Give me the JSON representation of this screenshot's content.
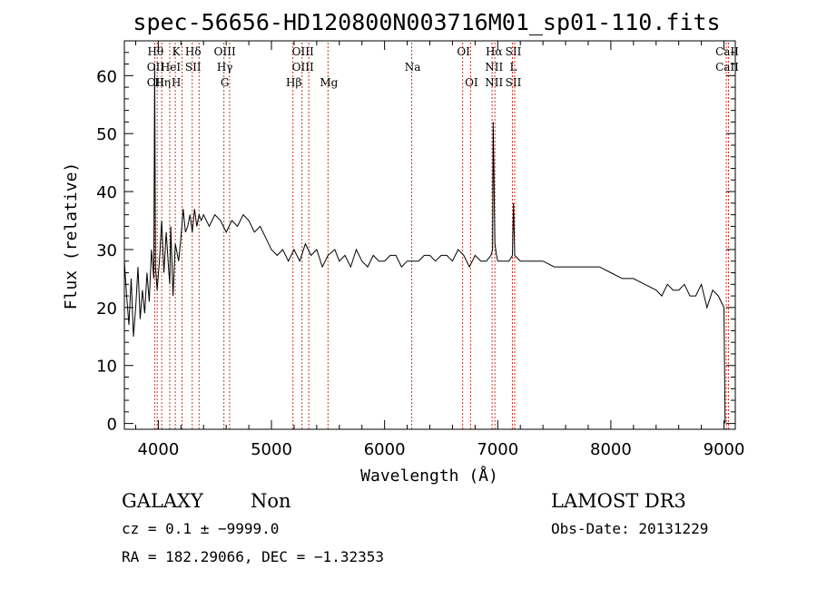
{
  "chart_data": {
    "type": "line",
    "title": "spec-56656-HD120800N003716M01_sp01-110.fits",
    "xlabel": "Wavelength (Å)",
    "ylabel": "Flux (relative)",
    "xlim": [
      3700,
      9100
    ],
    "ylim": [
      -1,
      66
    ],
    "x_ticks": [
      4000,
      5000,
      6000,
      7000,
      8000,
      9000
    ],
    "y_ticks": [
      0,
      10,
      20,
      30,
      40,
      50,
      60
    ],
    "grid": false,
    "series": [
      {
        "color": "#000000",
        "x": [
          3700,
          3720,
          3740,
          3760,
          3780,
          3800,
          3820,
          3840,
          3860,
          3880,
          3900,
          3920,
          3940,
          3960,
          3968,
          3975,
          3990,
          4010,
          4030,
          4050,
          4070,
          4090,
          4101,
          4110,
          4130,
          4150,
          4180,
          4200,
          4220,
          4240,
          4260,
          4280,
          4300,
          4320,
          4340,
          4360,
          4380,
          4400,
          4450,
          4500,
          4550,
          4600,
          4650,
          4700,
          4750,
          4800,
          4850,
          4900,
          4950,
          5000,
          5050,
          5100,
          5150,
          5200,
          5250,
          5300,
          5350,
          5400,
          5450,
          5500,
          5560,
          5600,
          5650,
          5700,
          5750,
          5800,
          5850,
          5900,
          5950,
          6000,
          6050,
          6100,
          6150,
          6200,
          6250,
          6300,
          6350,
          6400,
          6450,
          6500,
          6550,
          6600,
          6650,
          6700,
          6750,
          6800,
          6850,
          6900,
          6940,
          6955,
          6960,
          6975,
          6990,
          7000,
          7050,
          7100,
          7130,
          7140,
          7150,
          7200,
          7300,
          7400,
          7500,
          7600,
          7700,
          7800,
          7900,
          8000,
          8100,
          8200,
          8300,
          8400,
          8450,
          8500,
          8550,
          8600,
          8650,
          8700,
          8750,
          8800,
          8850,
          8900,
          8950,
          9000,
          9010
        ],
        "values": [
          28,
          22,
          17,
          25,
          15,
          20,
          27,
          18,
          23,
          19,
          26,
          21,
          30,
          25,
          62,
          27,
          23,
          28,
          35,
          26,
          33,
          27,
          24,
          34,
          22,
          31,
          28,
          32,
          37,
          33,
          34,
          36,
          33,
          37,
          34,
          36,
          35,
          36,
          34,
          36,
          35,
          33,
          35,
          34,
          36,
          35,
          33,
          34,
          32,
          30,
          29,
          30,
          28,
          30,
          28,
          31,
          29,
          30,
          27,
          29,
          30,
          28,
          29,
          27,
          30,
          28,
          27,
          29,
          28,
          28,
          29,
          29,
          27,
          28,
          28,
          28,
          29,
          29,
          28,
          29,
          29,
          28,
          30,
          29,
          27,
          29,
          28,
          28,
          29,
          30,
          52,
          31,
          29,
          28,
          28,
          28,
          29,
          38,
          29,
          28,
          28,
          28,
          27,
          27,
          27,
          27,
          27,
          26,
          25,
          25,
          24,
          23,
          22,
          24,
          23,
          23,
          24,
          22,
          22,
          24,
          20,
          23,
          22,
          20,
          0
        ]
      }
    ],
    "lines": [
      {
        "x": 3968,
        "top": "Hθ",
        "mid": "OII",
        "bot": "OII"
      },
      {
        "x": 4030,
        "top": "",
        "mid": "",
        "bot": "Hη"
      },
      {
        "x": 4101,
        "top": "",
        "mid": "HeI",
        "bot": ""
      },
      {
        "x": 4150,
        "top": "K",
        "mid": "",
        "bot": "H"
      },
      {
        "x": 4300,
        "top": "Hδ",
        "mid": "SII",
        "bot": ""
      },
      {
        "x": 4580,
        "top": "OIII",
        "mid": "Hγ",
        "bot": "G"
      },
      {
        "x": 5190,
        "top": "",
        "mid": "",
        "bot": "Hβ"
      },
      {
        "x": 5270,
        "top": "OIII",
        "mid": "OIII",
        "bot": ""
      },
      {
        "x": 5500,
        "top": "",
        "mid": "",
        "bot": "Mg"
      },
      {
        "x": 6240,
        "top": "",
        "mid": "Na",
        "bot": ""
      },
      {
        "x": 6690,
        "top": "OI",
        "mid": "",
        "bot": ""
      },
      {
        "x": 6760,
        "top": "",
        "mid": "",
        "bot": "OI"
      },
      {
        "x": 6960,
        "top": "Hα",
        "mid": "NII",
        "bot": "NII"
      },
      {
        "x": 7130,
        "top": "SII",
        "mid": "L",
        "bot": "SII"
      },
      {
        "x": 9020,
        "top": "CaII",
        "mid": "CaII",
        "bot": ""
      }
    ],
    "line_positions": [
      3968,
      3990,
      4030,
      4101,
      4150,
      4210,
      4300,
      4360,
      4580,
      4630,
      5190,
      5270,
      5330,
      5500,
      6240,
      6690,
      6760,
      6950,
      6975,
      7130,
      7150,
      9020,
      9040
    ]
  },
  "footer": {
    "class_label": "GALAXY",
    "subclass_label": "Non",
    "survey": "LAMOST DR3",
    "cz": "cz = 0.1 ± −9999.0",
    "obs_date": "Obs-Date: 20131229",
    "radec": "RA = 182.29066, DEC =  −1.32353"
  }
}
